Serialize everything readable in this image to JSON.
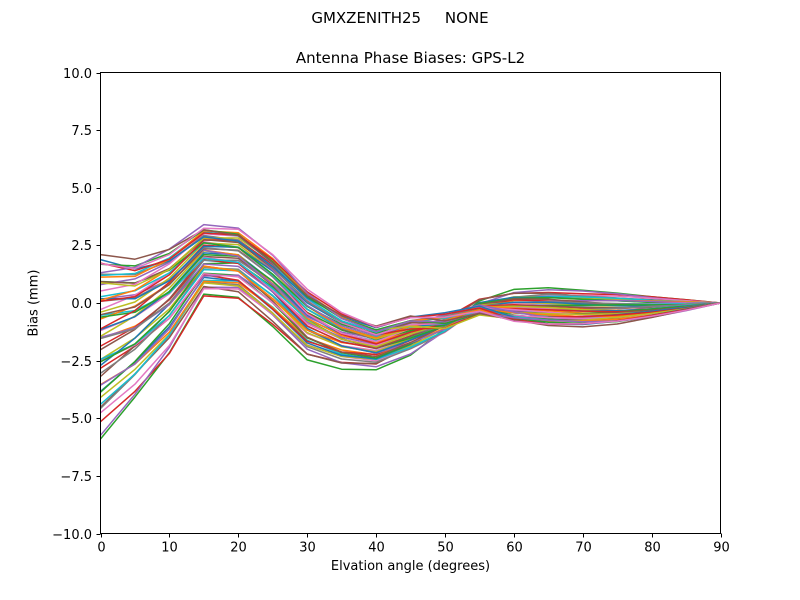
{
  "figure": {
    "suptitle": "GMXZENITH25     NONE",
    "background_color": "#ffffff",
    "text_color": "#000000"
  },
  "chart_data": {
    "type": "line",
    "title": "Antenna Phase Biases: GPS-L2",
    "xlabel": "Elvation angle (degrees)",
    "ylabel": "Bias (mm)",
    "xlim": [
      0,
      90
    ],
    "ylim": [
      -10.0,
      10.0
    ],
    "xtick_values": [
      0,
      10,
      20,
      30,
      40,
      50,
      60,
      70,
      80,
      90
    ],
    "xtick_labels": [
      "0",
      "10",
      "20",
      "30",
      "40",
      "50",
      "60",
      "70",
      "80",
      "90"
    ],
    "ytick_values": [
      10.0,
      7.5,
      5.0,
      2.5,
      0.0,
      -2.5,
      -5.0,
      -7.5,
      -10.0
    ],
    "ytick_labels": [
      "10.0",
      "7.5",
      "5.0",
      "2.5",
      "0.0",
      "−2.5",
      "−5.0",
      "−7.5",
      "−10.0"
    ],
    "grid": false,
    "legend": false,
    "marker": "none",
    "line_width": 1.5,
    "x": [
      0,
      5,
      10,
      15,
      20,
      25,
      30,
      35,
      40,
      45,
      50,
      55,
      60,
      65,
      70,
      75,
      80,
      85,
      90
    ],
    "bundle": {
      "description": "Dense bundle of ~55 unlabeled per-antenna phase-bias curves sampled every 5 degrees; all curves converge to 0.0 mm at 90 degrees; bundle pinches (curves cross) near 48-56 degrees.",
      "n_series": 55,
      "envelope_max": [
        2.0,
        1.8,
        2.3,
        3.3,
        3.15,
        2.0,
        0.5,
        -0.5,
        -1.05,
        -0.6,
        -0.35,
        0.22,
        0.55,
        0.63,
        0.55,
        0.45,
        0.3,
        0.15,
        0.0
      ],
      "envelope_min": [
        -5.9,
        -4.2,
        -2.3,
        0.3,
        0.2,
        -1.0,
        -2.4,
        -2.8,
        -2.85,
        -2.25,
        -1.45,
        -0.55,
        -0.75,
        -0.92,
        -0.95,
        -0.85,
        -0.62,
        -0.32,
        0.0
      ],
      "crossing_degrees": [
        48,
        56
      ],
      "converge_value_at_90": 0.0,
      "colors": [
        "#1f77b4",
        "#ff7f0e",
        "#2ca02c",
        "#d62728",
        "#9467bd",
        "#8c564b",
        "#e377c2",
        "#7f7f7f",
        "#bcbd22",
        "#17becf"
      ]
    },
    "axis_color": "#000000"
  }
}
